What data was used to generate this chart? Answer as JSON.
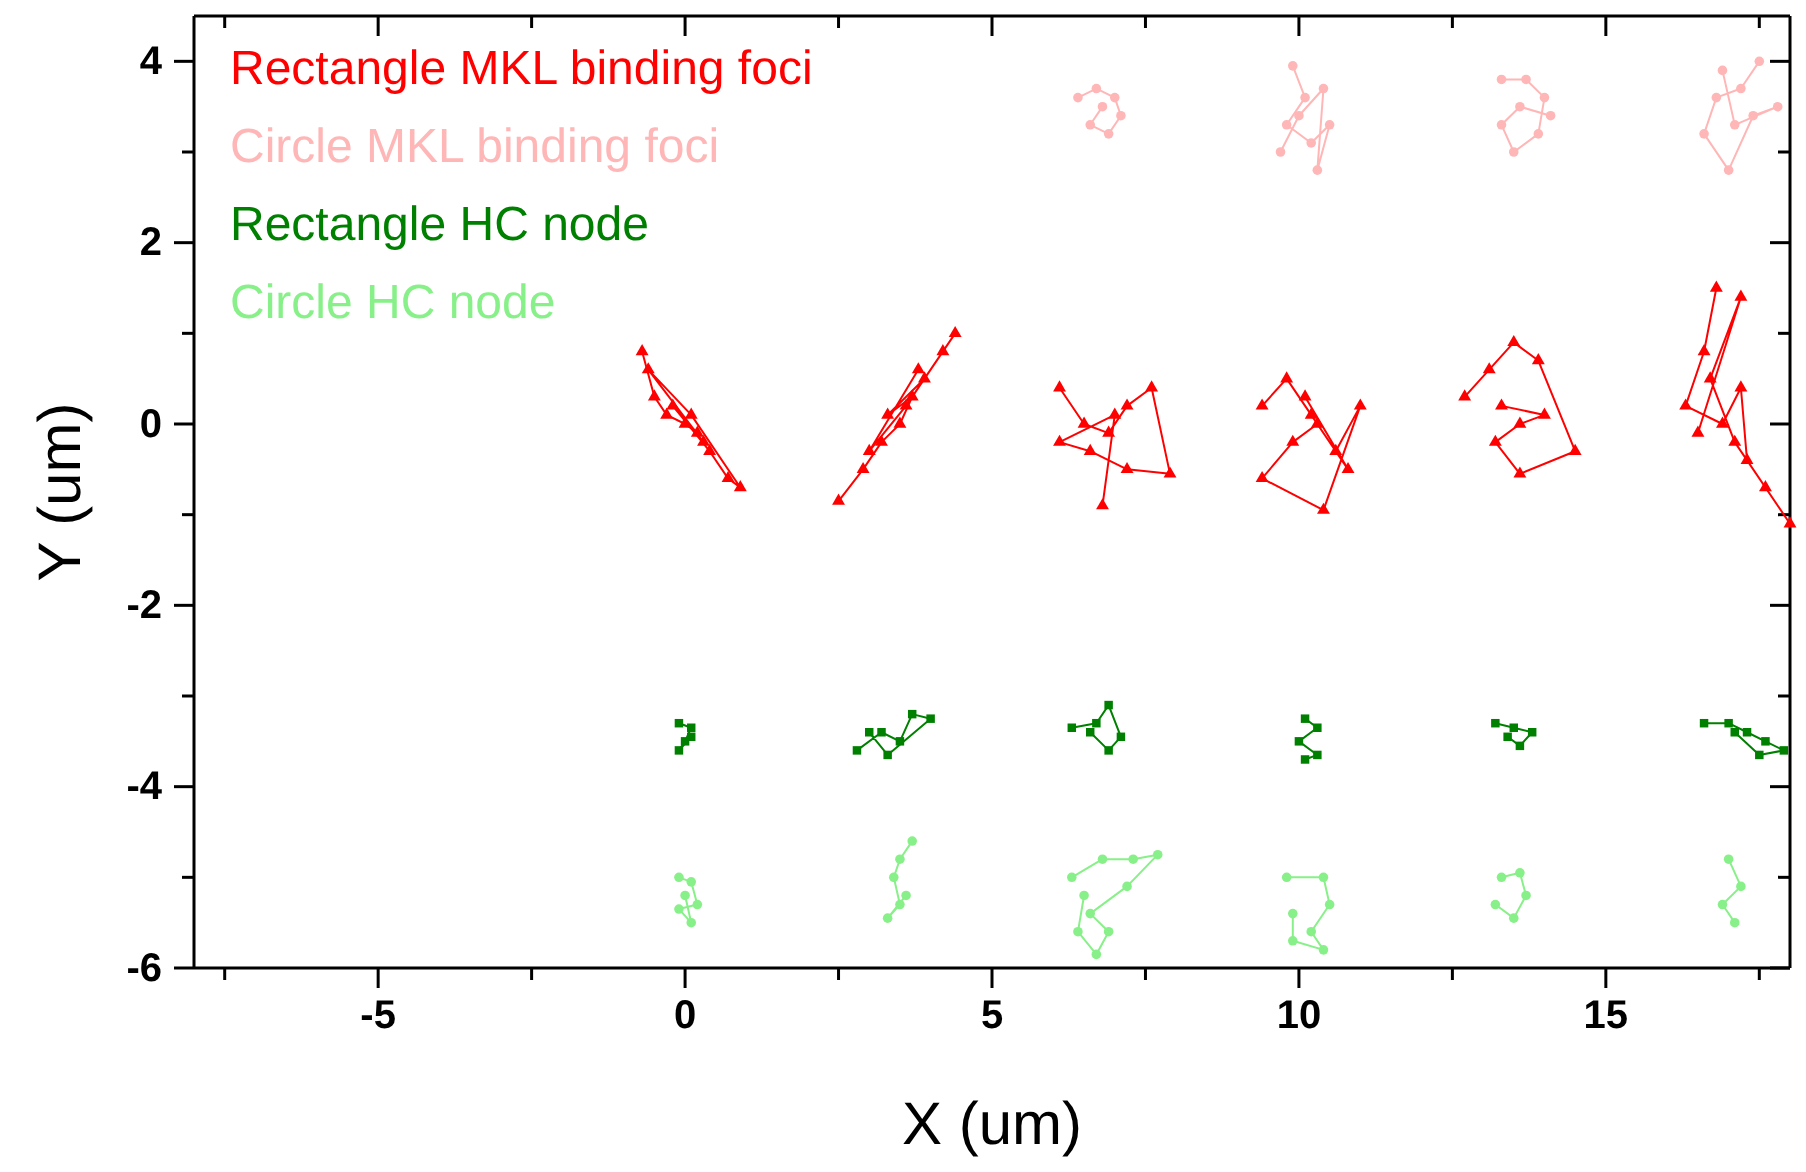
{
  "chart_data": {
    "type": "line",
    "xlabel": "X (um)",
    "ylabel": "Y (um)",
    "xlim": [
      -8,
      18
    ],
    "ylim": [
      -6,
      4.5
    ],
    "xticks": [
      {
        "value": -7.5,
        "label": null
      },
      -5,
      {
        "value": -2.5,
        "label": null
      },
      0,
      {
        "value": 2.5,
        "label": null
      },
      5,
      {
        "value": 7.5,
        "label": null
      },
      10,
      {
        "value": 12.5,
        "label": null
      },
      15,
      {
        "value": 17.5,
        "label": null
      }
    ],
    "yticks": [
      -6,
      {
        "value": -5,
        "label": null
      },
      -4,
      {
        "value": -3,
        "label": null
      },
      -2,
      {
        "value": -1,
        "label": null
      },
      0,
      {
        "value": 1,
        "label": null
      },
      2,
      {
        "value": 3,
        "label": null
      },
      4
    ],
    "legend": "top left",
    "grid": false,
    "line_style": "solid",
    "series": [
      {
        "name": "Rectangle MKL binding foci",
        "color": "#ff0000",
        "marker": "triangle",
        "x": [
          -0.7,
          -0.5,
          -0.3,
          0,
          0.2,
          -0.2,
          0.4,
          0.7,
          0.9,
          0.1,
          -0.6,
          0.3,
          null,
          2.5,
          2.9,
          3.2,
          3.5,
          3.7,
          3.3,
          3.9,
          4.2,
          4.4,
          3.6,
          3,
          3.8,
          null,
          6.1,
          6.5,
          6.9,
          7.2,
          7.6,
          7.9,
          7.2,
          6.6,
          6.1,
          7,
          6.8,
          null,
          9.4,
          9.8,
          10.2,
          10.6,
          11,
          10.4,
          9.4,
          9.9,
          10.3,
          10.8,
          10.1,
          null,
          12.7,
          13.1,
          13.5,
          13.9,
          14.5,
          13.6,
          13.2,
          13.6,
          14,
          13.3,
          null,
          16.8,
          16.6,
          16.3,
          16.9,
          17.2,
          17.3,
          17.6,
          18,
          17.1,
          16.7,
          17.2,
          16.5
        ],
        "values": [
          0.8,
          0.3,
          0.1,
          0,
          -0.1,
          0.2,
          -0.3,
          -0.6,
          -0.7,
          0.1,
          0.6,
          -0.2,
          null,
          -0.85,
          -0.5,
          -0.2,
          0,
          0.3,
          0.1,
          0.5,
          0.8,
          1,
          0.2,
          -0.3,
          0.6,
          null,
          0.4,
          0,
          -0.1,
          0.2,
          0.4,
          -0.55,
          -0.5,
          -0.3,
          -0.2,
          0.1,
          -0.9,
          null,
          0.2,
          0.5,
          0.1,
          -0.3,
          0.2,
          -0.95,
          -0.6,
          -0.2,
          0,
          -0.5,
          0.3,
          null,
          0.3,
          0.6,
          0.9,
          0.7,
          -0.3,
          -0.55,
          -0.2,
          0,
          0.1,
          0.2,
          null,
          1.5,
          0.8,
          0.2,
          0,
          0.4,
          -0.4,
          -0.7,
          -1.1,
          -0.2,
          0.5,
          1.4,
          -0.1
        ]
      },
      {
        "name": "Circle MKL binding foci",
        "color": "#ffb6b6",
        "marker": "circle",
        "x": [
          6.4,
          6.7,
          7,
          7.1,
          6.9,
          6.6,
          6.8,
          null,
          9.9,
          10.1,
          9.8,
          10.2,
          10.5,
          10.3,
          10.4,
          10,
          9.7,
          null,
          13.3,
          13.7,
          14,
          13.9,
          13.5,
          13.3,
          13.6,
          14.1,
          null,
          17.5,
          17.2,
          16.8,
          16.6,
          17,
          17.4,
          17.8,
          17.1,
          16.9
        ],
        "values": [
          3.6,
          3.7,
          3.6,
          3.4,
          3.2,
          3.3,
          3.5,
          null,
          3.95,
          3.6,
          3.3,
          3.1,
          3.3,
          2.8,
          3.7,
          3.4,
          3,
          null,
          3.8,
          3.8,
          3.6,
          3.2,
          3,
          3.3,
          3.5,
          3.4,
          null,
          4,
          3.7,
          3.6,
          3.2,
          2.8,
          3.4,
          3.5,
          3.3,
          3.9
        ]
      },
      {
        "name": "Rectangle HC node",
        "color": "#008000",
        "marker": "square",
        "x": [
          -0.1,
          0.1,
          0,
          -0.1,
          0.1,
          null,
          2.8,
          3.2,
          3.5,
          3.7,
          4,
          3.3,
          3,
          null,
          6.3,
          6.7,
          6.9,
          7.1,
          6.9,
          6.6,
          null,
          10.1,
          10.3,
          10,
          10.3,
          10.1,
          null,
          13.2,
          13.5,
          13.8,
          13.6,
          13.4,
          null,
          16.6,
          17,
          17.3,
          17.6,
          17.9,
          17.5,
          17.1
        ],
        "values": [
          -3.3,
          -3.35,
          -3.5,
          -3.6,
          -3.45,
          null,
          -3.6,
          -3.4,
          -3.5,
          -3.2,
          -3.25,
          -3.65,
          -3.4,
          null,
          -3.35,
          -3.3,
          -3.1,
          -3.45,
          -3.6,
          -3.4,
          null,
          -3.25,
          -3.35,
          -3.5,
          -3.65,
          -3.7,
          null,
          -3.3,
          -3.35,
          -3.4,
          -3.55,
          -3.45,
          null,
          -3.3,
          -3.3,
          -3.4,
          -3.5,
          -3.6,
          -3.65,
          -3.4
        ]
      },
      {
        "name": "Circle HC node",
        "color": "#88f088",
        "marker": "circle",
        "x": [
          -0.1,
          0.1,
          0.2,
          -0.1,
          0.1,
          0,
          null,
          3.7,
          3.5,
          3.4,
          3.5,
          3.3,
          3.6,
          null,
          6.3,
          6.8,
          7.3,
          7.7,
          7.2,
          6.6,
          6.9,
          6.7,
          6.4,
          6.5,
          null,
          9.8,
          10.4,
          10.5,
          10.2,
          10.4,
          9.9,
          9.9,
          null,
          13.3,
          13.6,
          13.7,
          13.5,
          13.2,
          null,
          17,
          17.2,
          16.9,
          17.1
        ],
        "values": [
          -5,
          -5.05,
          -5.3,
          -5.35,
          -5.5,
          -5.2,
          null,
          -4.6,
          -4.8,
          -5,
          -5.3,
          -5.45,
          -5.2,
          null,
          -5,
          -4.8,
          -4.8,
          -4.75,
          -5.1,
          -5.4,
          -5.6,
          -5.85,
          -5.6,
          -5.2,
          null,
          -5,
          -5,
          -5.3,
          -5.6,
          -5.8,
          -5.7,
          -5.4,
          null,
          -5,
          -4.95,
          -5.2,
          -5.45,
          -5.3,
          null,
          -4.8,
          -5.1,
          -5.3,
          -5.5
        ]
      }
    ]
  }
}
